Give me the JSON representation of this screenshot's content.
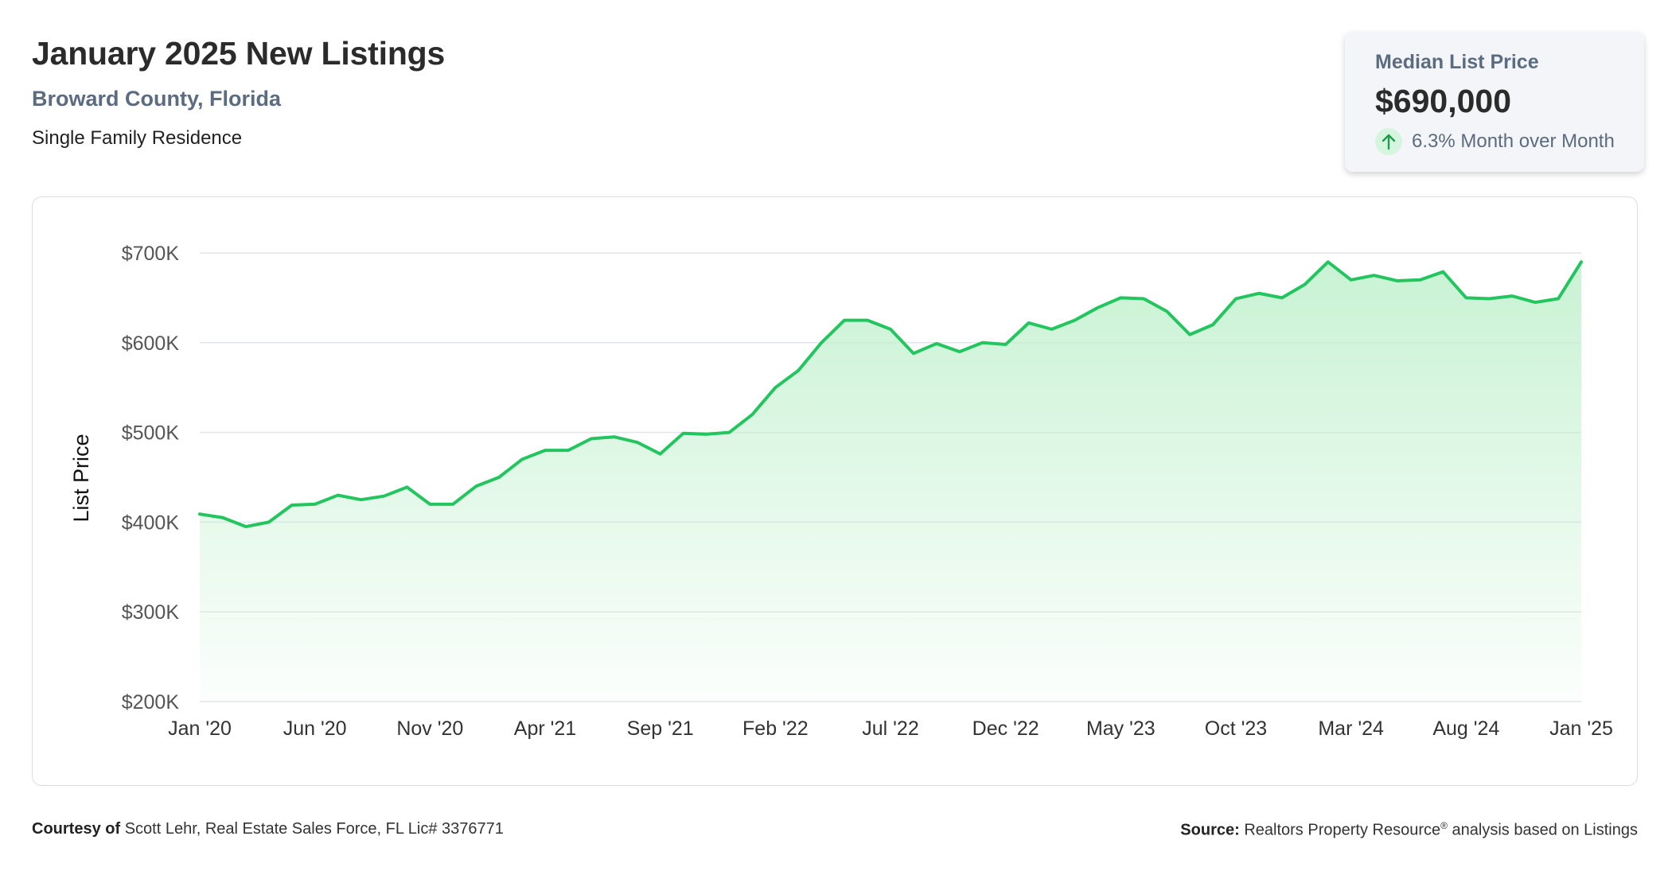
{
  "header": {
    "title": "January 2025 New Listings",
    "region": "Broward County, Florida",
    "property_type": "Single Family Residence"
  },
  "kpi": {
    "label": "Median List Price",
    "value": "$690,000",
    "change_text": "6.3% Month over Month",
    "direction_icon": "arrow-up-icon",
    "direction": "up"
  },
  "colors": {
    "line": "#22c55e",
    "fill_top": "#bff0cc",
    "arrow": "#1f9d4c",
    "grid": "#e2e5e9"
  },
  "footer": {
    "courtesy_label": "Courtesy of",
    "courtesy_text": "Scott Lehr, Real Estate Sales Force, FL Lic# 3376771",
    "source_label": "Source:",
    "source_name": "Realtors Property Resource",
    "source_mark": "®",
    "source_suffix": "analysis based on Listings"
  },
  "chart_data": {
    "type": "area",
    "title": "",
    "xlabel": "",
    "ylabel": "List Price",
    "ylim": [
      200000,
      700000
    ],
    "yticks": [
      200000,
      300000,
      400000,
      500000,
      600000,
      700000
    ],
    "ytick_labels": [
      "$200K",
      "$300K",
      "$400K",
      "$500K",
      "$600K",
      "$700K"
    ],
    "grid": true,
    "legend": "none",
    "x_start": "2020-01",
    "x_end": "2025-01",
    "xtick_labels": [
      "Jan '20",
      "Jun '20",
      "Nov '20",
      "Apr '21",
      "Sep '21",
      "Feb '22",
      "Jul '22",
      "Dec '22",
      "May '23",
      "Oct '23",
      "Mar '24",
      "Aug '24",
      "Jan '25"
    ],
    "x": [
      "2020-01",
      "2020-02",
      "2020-03",
      "2020-04",
      "2020-05",
      "2020-06",
      "2020-07",
      "2020-08",
      "2020-09",
      "2020-10",
      "2020-11",
      "2020-12",
      "2021-01",
      "2021-02",
      "2021-03",
      "2021-04",
      "2021-05",
      "2021-06",
      "2021-07",
      "2021-08",
      "2021-09",
      "2021-10",
      "2021-11",
      "2021-12",
      "2022-01",
      "2022-02",
      "2022-03",
      "2022-04",
      "2022-05",
      "2022-06",
      "2022-07",
      "2022-08",
      "2022-09",
      "2022-10",
      "2022-11",
      "2022-12",
      "2023-01",
      "2023-02",
      "2023-03",
      "2023-04",
      "2023-05",
      "2023-06",
      "2023-07",
      "2023-08",
      "2023-09",
      "2023-10",
      "2023-11",
      "2023-12",
      "2024-01",
      "2024-02",
      "2024-03",
      "2024-04",
      "2024-05",
      "2024-06",
      "2024-07",
      "2024-08",
      "2024-09",
      "2024-10",
      "2024-11",
      "2024-12",
      "2025-01"
    ],
    "series": [
      {
        "values": [
          409000,
          405000,
          395000,
          400000,
          419000,
          420000,
          430000,
          425000,
          429000,
          439000,
          420000,
          420000,
          440000,
          450000,
          470000,
          480000,
          480000,
          493000,
          495000,
          489000,
          476000,
          499000,
          498000,
          500000,
          520000,
          550000,
          569000,
          600000,
          625000,
          625000,
          615000,
          588000,
          599000,
          590000,
          600000,
          598000,
          622000,
          615000,
          625000,
          639000,
          650000,
          649000,
          635000,
          609000,
          620000,
          649000,
          655000,
          650000,
          665000,
          690000,
          670000,
          675000,
          669000,
          670000,
          679000,
          650000,
          649000,
          652000,
          645000,
          649000,
          690000
        ]
      }
    ]
  }
}
